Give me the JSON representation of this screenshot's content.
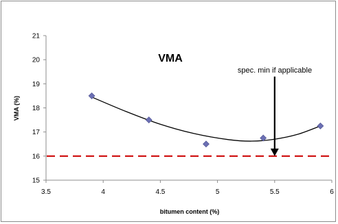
{
  "chart_data": {
    "type": "scatter",
    "title": "VMA",
    "xlabel": "bitumen content (%)",
    "ylabel": "VMA (%)",
    "xlim": [
      3.5,
      6
    ],
    "ylim": [
      15,
      21
    ],
    "x_ticks": [
      "3.5",
      "4",
      "4.5",
      "5",
      "5.5",
      "6"
    ],
    "y_ticks": [
      "15",
      "16",
      "17",
      "18",
      "19",
      "20",
      "21"
    ],
    "grid": false,
    "legend": "none",
    "series": [
      {
        "marker": "diamond",
        "color": "#6b6fb3",
        "points": [
          {
            "x": 3.9,
            "y": 18.5
          },
          {
            "x": 4.4,
            "y": 17.5
          },
          {
            "x": 4.9,
            "y": 16.5
          },
          {
            "x": 5.4,
            "y": 16.75
          },
          {
            "x": 5.9,
            "y": 17.25
          }
        ]
      }
    ],
    "trendline": {
      "type": "polynomial-2",
      "color": "#000000",
      "x_range": [
        3.9,
        5.9
      ],
      "points": [
        {
          "x": 3.9,
          "y": 18.45
        },
        {
          "x": 4.2,
          "y": 17.85
        },
        {
          "x": 4.5,
          "y": 17.32
        },
        {
          "x": 4.8,
          "y": 16.93
        },
        {
          "x": 5.1,
          "y": 16.68
        },
        {
          "x": 5.3,
          "y": 16.62
        },
        {
          "x": 5.5,
          "y": 16.7
        },
        {
          "x": 5.7,
          "y": 16.9
        },
        {
          "x": 5.9,
          "y": 17.25
        }
      ]
    },
    "spec_line": {
      "y": 16,
      "color": "#cc0000",
      "style": "dashed"
    },
    "annotation": {
      "text": "spec. min if applicable",
      "arrow_x": 5.5,
      "arrow_from_y": 19.3,
      "arrow_to_y": 16
    }
  }
}
